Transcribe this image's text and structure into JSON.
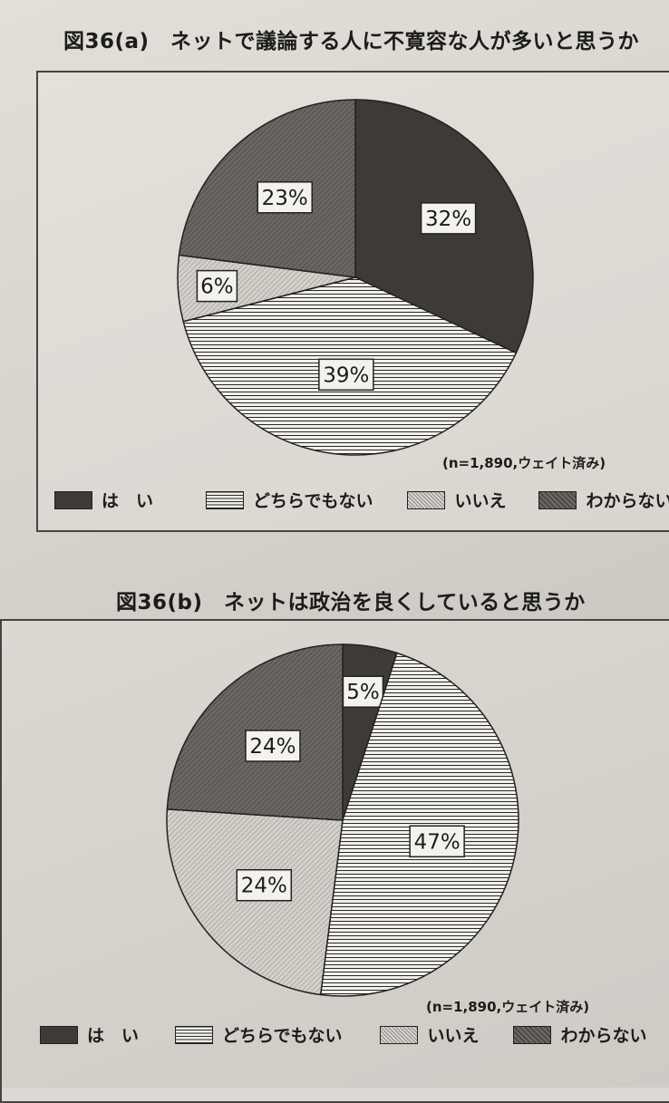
{
  "figures": [
    {
      "title": "図36(a)　ネットで議論する人に不寛容な人が多いと思うか",
      "note": "(n=1,890,ウェイト済み)",
      "legend": [
        {
          "key": "yes",
          "label": "は　い"
        },
        {
          "key": "neither",
          "label": "どちらでもない"
        },
        {
          "key": "no",
          "label": "いいえ"
        },
        {
          "key": "dk",
          "label": "わからない"
        }
      ]
    },
    {
      "title": "図36(b)　ネットは政治を良くしていると思うか",
      "note": "(n=1,890,ウェイト済み)",
      "legend": [
        {
          "key": "yes",
          "label": "は　い"
        },
        {
          "key": "neither",
          "label": "どちらでもない"
        },
        {
          "key": "no",
          "label": "いいえ"
        },
        {
          "key": "dk",
          "label": "わからない"
        }
      ]
    }
  ],
  "chart_data": [
    {
      "type": "pie",
      "title": "図36(a)　ネットで議論する人に不寛容な人が多いと思うか",
      "categories": [
        "は　い",
        "どちらでもない",
        "いいえ",
        "わからない"
      ],
      "values": [
        32,
        39,
        6,
        23
      ],
      "value_labels": [
        "32%",
        "39%",
        "6%",
        "23%"
      ],
      "start": "12 o'clock, clockwise"
    },
    {
      "type": "pie",
      "title": "図36(b)　ネットは政治を良くしていると思うか",
      "categories": [
        "は　い",
        "どちらでもない",
        "いいえ",
        "わからない"
      ],
      "values": [
        5,
        47,
        24,
        24
      ],
      "value_labels": [
        "5%",
        "47%",
        "24%",
        "24%"
      ],
      "start": "12 o'clock, clockwise"
    }
  ],
  "colors": {
    "yes": "#3d3a38",
    "neither_bg": "#f1efea",
    "neither_line": "#2a2a2a",
    "no_bg": "#d3d0ca",
    "no_line": "#8f8c88",
    "dk": "#5e5b58"
  }
}
